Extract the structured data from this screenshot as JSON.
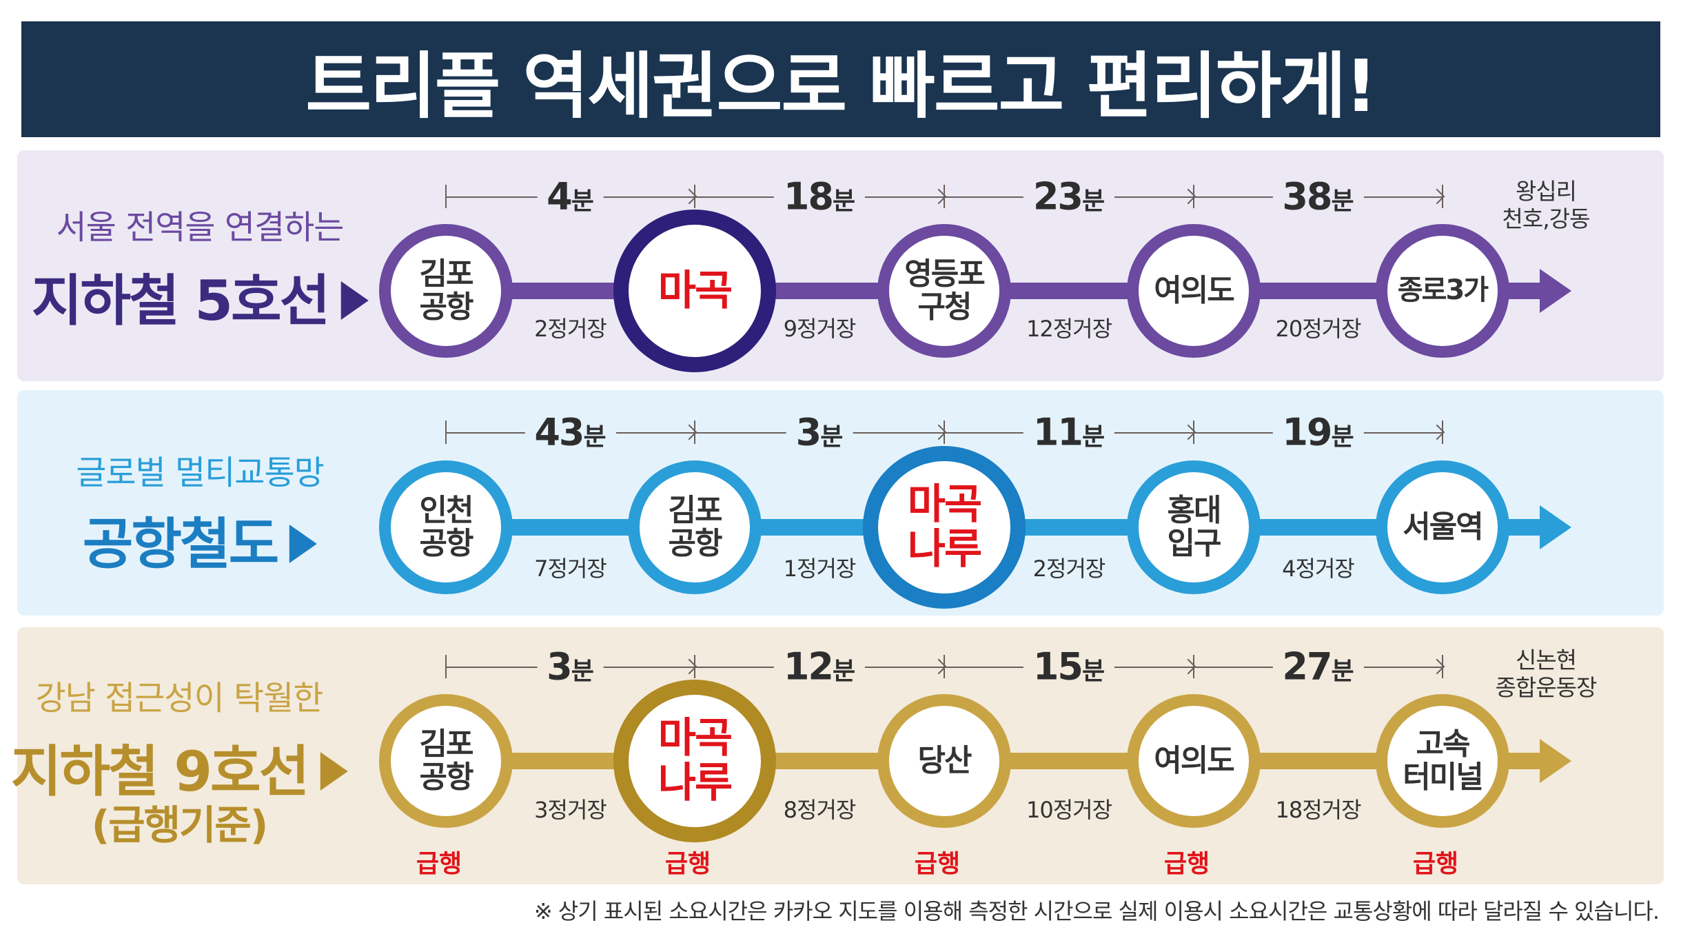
{
  "banner": {
    "title": "트리플 역세권으로 빠르고 편리하게!"
  },
  "lines": [
    {
      "id": "line5",
      "color": "#6b4aa0",
      "highlight_color": "#2e1f7a",
      "subtitle": "서울 전역을 연결하는",
      "title": "지하철 5호선",
      "extra": "",
      "stations": [
        {
          "name": "김포\n공항",
          "highlight": false
        },
        {
          "name": "마곡",
          "highlight": true
        },
        {
          "name": "영등포\n구청",
          "highlight": false
        },
        {
          "name": "여의도",
          "highlight": false
        },
        {
          "name": "종로3가",
          "highlight": false
        }
      ],
      "times": [
        {
          "value": "4",
          "unit": "분"
        },
        {
          "value": "18",
          "unit": "분"
        },
        {
          "value": "23",
          "unit": "분"
        },
        {
          "value": "38",
          "unit": "분"
        }
      ],
      "stops": [
        "2정거장",
        "9정거장",
        "12정거장",
        "20정거장"
      ],
      "destination": "왕십리\n천호,강동",
      "express": []
    },
    {
      "id": "airport",
      "color": "#2a9ed8",
      "highlight_color": "#1a7fc4",
      "subtitle": "글로벌 멀티교통망",
      "title": "공항철도",
      "extra": "",
      "stations": [
        {
          "name": "인천\n공항",
          "highlight": false
        },
        {
          "name": "김포\n공항",
          "highlight": false
        },
        {
          "name": "마곡\n나루",
          "highlight": true
        },
        {
          "name": "홍대\n입구",
          "highlight": false
        },
        {
          "name": "서울역",
          "highlight": false
        }
      ],
      "times": [
        {
          "value": "43",
          "unit": "분"
        },
        {
          "value": "3",
          "unit": "분"
        },
        {
          "value": "11",
          "unit": "분"
        },
        {
          "value": "19",
          "unit": "분"
        }
      ],
      "stops": [
        "7정거장",
        "1정거장",
        "2정거장",
        "4정거장"
      ],
      "destination": "",
      "express": []
    },
    {
      "id": "line9",
      "color": "#c9a445",
      "highlight_color": "#b08a22",
      "subtitle": "강남 접근성이 탁월한",
      "title": "지하철 9호선",
      "extra": "(급행기준)",
      "stations": [
        {
          "name": "김포\n공항",
          "highlight": false
        },
        {
          "name": "마곡\n나루",
          "highlight": true
        },
        {
          "name": "당산",
          "highlight": false
        },
        {
          "name": "여의도",
          "highlight": false
        },
        {
          "name": "고속\n터미널",
          "highlight": false
        }
      ],
      "times": [
        {
          "value": "3",
          "unit": "분"
        },
        {
          "value": "12",
          "unit": "분"
        },
        {
          "value": "15",
          "unit": "분"
        },
        {
          "value": "27",
          "unit": "분"
        }
      ],
      "stops": [
        "3정거장",
        "8정거장",
        "10정거장",
        "18정거장"
      ],
      "destination": "신논현\n종합운동장",
      "express": [
        "급행",
        "급행",
        "급행",
        "급행",
        "급행"
      ]
    }
  ],
  "footnote": "※ 상기 표시된 소요시간은 카카오 지도를 이용해 측정한 시간으로 실제 이용시 소요시간은 교통상황에 따라 달라질  수  있습니다."
}
